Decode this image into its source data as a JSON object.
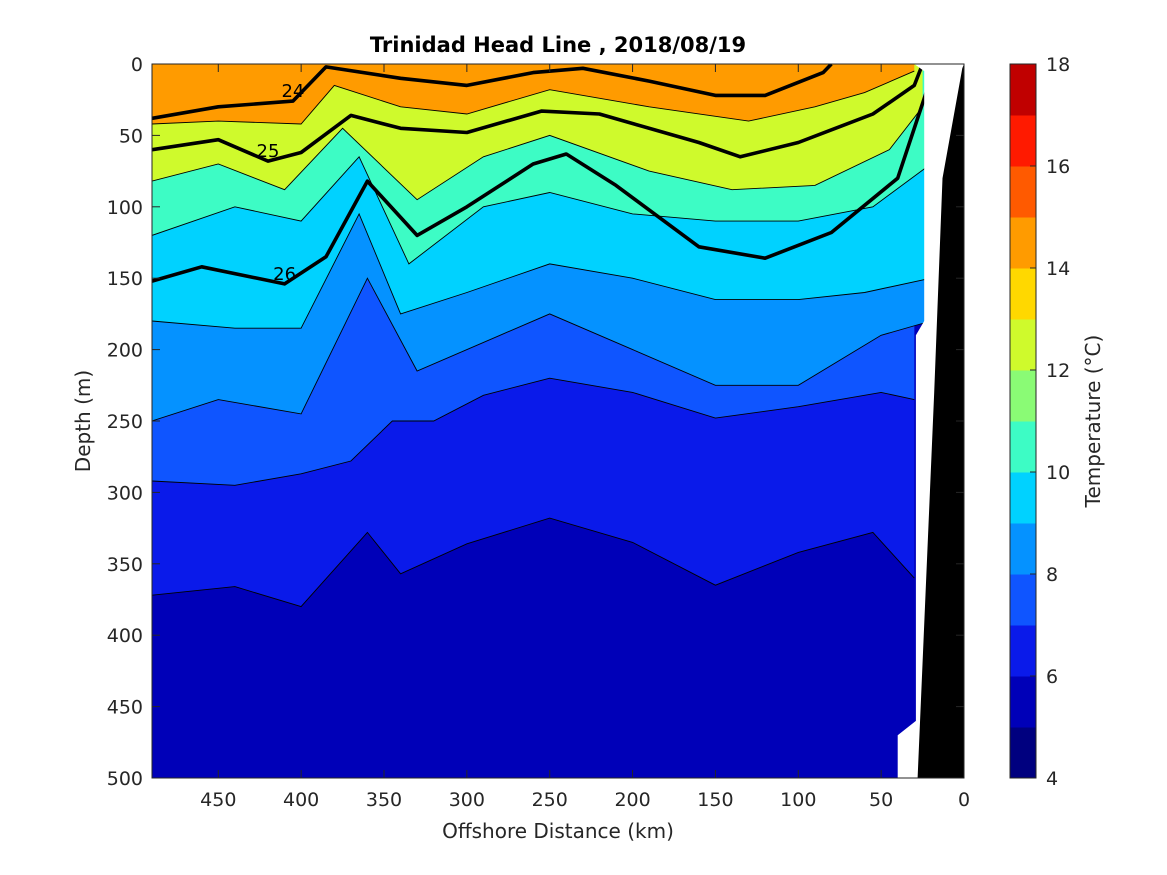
{
  "chart_data": {
    "type": "contour",
    "title": "Trinidad Head Line , 2018/08/19",
    "xlabel": "Offshore Distance (km)",
    "ylabel": "Depth (m)",
    "xlim": [
      490,
      0
    ],
    "ylim": [
      0,
      500
    ],
    "x_reversed": true,
    "y_reversed": true,
    "x_ticks": [
      "450",
      "400",
      "350",
      "300",
      "250",
      "200",
      "150",
      "100",
      "50",
      "0"
    ],
    "y_ticks": [
      "0",
      "50",
      "100",
      "150",
      "200",
      "250",
      "300",
      "350",
      "400",
      "450",
      "500"
    ],
    "colorbar": {
      "label": "Temperature (°C)",
      "range": [
        4,
        18
      ],
      "ticks": [
        "4",
        "6",
        "8",
        "10",
        "12",
        "14",
        "16",
        "18"
      ],
      "colors": [
        "#00007f",
        "#0000b8",
        "#0a1aea",
        "#0f55ff",
        "#0592ff",
        "#00d2ff",
        "#3dfcc5",
        "#8afb75",
        "#cffa2c",
        "#ffd800",
        "#ff9b00",
        "#ff5a00",
        "#ff1a00",
        "#c00000"
      ]
    },
    "temperature_isotherms": [
      {
        "value": 6,
        "points": [
          [
            490,
            372
          ],
          [
            440,
            366
          ],
          [
            400,
            380
          ],
          [
            360,
            328
          ],
          [
            340,
            357
          ],
          [
            300,
            336
          ],
          [
            250,
            318
          ],
          [
            200,
            335
          ],
          [
            150,
            365
          ],
          [
            100,
            342
          ],
          [
            55,
            328
          ],
          [
            30,
            360
          ]
        ]
      },
      {
        "value": 7,
        "points": [
          [
            490,
            292
          ],
          [
            440,
            295
          ],
          [
            400,
            287
          ],
          [
            370,
            278
          ],
          [
            345,
            250
          ],
          [
            320,
            250
          ],
          [
            290,
            232
          ],
          [
            250,
            220
          ],
          [
            200,
            230
          ],
          [
            150,
            248
          ],
          [
            100,
            240
          ],
          [
            50,
            230
          ],
          [
            30,
            235
          ]
        ]
      },
      {
        "value": 8,
        "points": [
          [
            490,
            250
          ],
          [
            450,
            235
          ],
          [
            400,
            245
          ],
          [
            360,
            150
          ],
          [
            330,
            215
          ],
          [
            280,
            190
          ],
          [
            250,
            175
          ],
          [
            200,
            200
          ],
          [
            150,
            225
          ],
          [
            100,
            225
          ],
          [
            50,
            190
          ],
          [
            20,
            180
          ]
        ]
      },
      {
        "value": 9,
        "points": [
          [
            490,
            180
          ],
          [
            440,
            185
          ],
          [
            400,
            185
          ],
          [
            365,
            105
          ],
          [
            340,
            175
          ],
          [
            300,
            160
          ],
          [
            250,
            140
          ],
          [
            200,
            150
          ],
          [
            150,
            165
          ],
          [
            100,
            165
          ],
          [
            60,
            160
          ],
          [
            20,
            150
          ]
        ]
      },
      {
        "value": 10,
        "points": [
          [
            490,
            120
          ],
          [
            440,
            100
          ],
          [
            400,
            110
          ],
          [
            365,
            65
          ],
          [
            335,
            140
          ],
          [
            290,
            100
          ],
          [
            250,
            90
          ],
          [
            200,
            105
          ],
          [
            150,
            110
          ],
          [
            100,
            110
          ],
          [
            55,
            100
          ],
          [
            20,
            70
          ]
        ]
      },
      {
        "value": 12,
        "points": [
          [
            490,
            82
          ],
          [
            450,
            70
          ],
          [
            410,
            88
          ],
          [
            375,
            45
          ],
          [
            330,
            95
          ],
          [
            290,
            65
          ],
          [
            250,
            50
          ],
          [
            190,
            75
          ],
          [
            140,
            88
          ],
          [
            90,
            85
          ],
          [
            45,
            60
          ],
          [
            25,
            30
          ]
        ]
      },
      {
        "value": 14,
        "points": [
          [
            490,
            42
          ],
          [
            450,
            40
          ],
          [
            400,
            42
          ],
          [
            380,
            15
          ],
          [
            340,
            30
          ],
          [
            300,
            35
          ],
          [
            250,
            18
          ],
          [
            190,
            30
          ],
          [
            130,
            40
          ],
          [
            90,
            30
          ],
          [
            60,
            20
          ],
          [
            30,
            5
          ]
        ]
      }
    ],
    "density_contours": [
      {
        "label": "24",
        "points": [
          [
            490,
            38
          ],
          [
            450,
            30
          ],
          [
            405,
            26
          ],
          [
            385,
            2
          ],
          [
            340,
            10
          ],
          [
            300,
            15
          ],
          [
            260,
            6
          ],
          [
            230,
            3
          ],
          [
            190,
            12
          ],
          [
            150,
            22
          ],
          [
            120,
            22
          ],
          [
            85,
            6
          ],
          [
            80,
            0
          ]
        ]
      },
      {
        "label": "25",
        "points": [
          [
            490,
            60
          ],
          [
            450,
            53
          ],
          [
            420,
            68
          ],
          [
            400,
            62
          ],
          [
            370,
            36
          ],
          [
            340,
            45
          ],
          [
            300,
            48
          ],
          [
            255,
            33
          ],
          [
            220,
            35
          ],
          [
            160,
            55
          ],
          [
            135,
            65
          ],
          [
            100,
            55
          ],
          [
            55,
            35
          ],
          [
            30,
            15
          ],
          [
            25,
            0
          ]
        ]
      },
      {
        "label": "26",
        "points": [
          [
            490,
            152
          ],
          [
            460,
            142
          ],
          [
            410,
            154
          ],
          [
            385,
            135
          ],
          [
            360,
            82
          ],
          [
            330,
            120
          ],
          [
            300,
            100
          ],
          [
            260,
            70
          ],
          [
            240,
            63
          ],
          [
            210,
            85
          ],
          [
            160,
            128
          ],
          [
            120,
            136
          ],
          [
            80,
            118
          ],
          [
            40,
            80
          ],
          [
            20,
            10
          ]
        ]
      }
    ],
    "bottom_profile": [
      [
        40,
        500
      ],
      [
        40,
        470
      ],
      [
        29,
        460
      ],
      [
        29,
        190
      ],
      [
        24,
        180
      ],
      [
        24,
        5
      ],
      [
        30,
        0
      ],
      [
        0,
        0
      ],
      [
        0,
        500
      ]
    ]
  }
}
